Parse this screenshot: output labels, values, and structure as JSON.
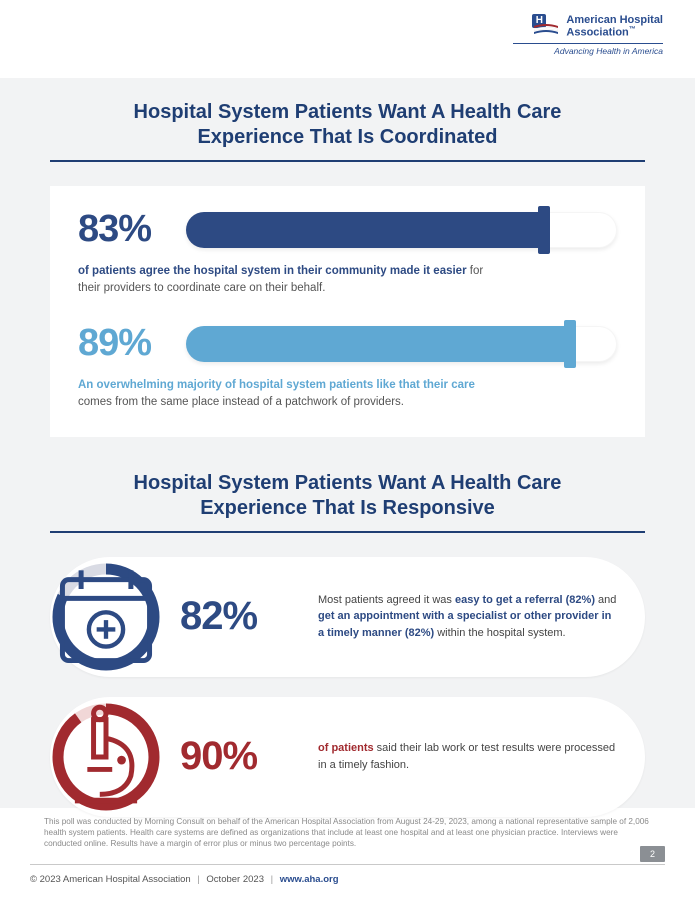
{
  "logo": {
    "name_line1": "American Hospital",
    "name_line2": "Association",
    "tm": "™",
    "tagline": "Advancing Health in America",
    "mark_letter": "H",
    "mark_bg": "#2a4d8f",
    "swoosh_colors": [
      "#a12a2f",
      "#ffffff",
      "#2a4d8f"
    ]
  },
  "section1": {
    "title_line1": "Hospital System Patients Want A Health Care",
    "title_line2": "Experience That Is Coordinated",
    "title_color": "#1f3e73",
    "rule_color": "#1f3e73",
    "panel_bg": "#ffffff",
    "stats": [
      {
        "pct_label": "83%",
        "pct_value": 83,
        "color": "#2d4a83",
        "track_bg": "#ffffff",
        "cap_color": "#2d4a83",
        "lead": "of patients agree the hospital system in their community made it easier",
        "tail": " for their providers to coordinate care on their behalf.",
        "lead_color": "#2d4a83"
      },
      {
        "pct_label": "89%",
        "pct_value": 89,
        "color": "#5fa8d3",
        "track_bg": "#ffffff",
        "cap_color": "#5fa8d3",
        "lead": "An overwhelming majority of hospital system patients like that their care",
        "tail": " comes from the same place instead of a patchwork of providers.",
        "lead_color": "#5fa8d3"
      }
    ]
  },
  "section2": {
    "title_line1": "Hospital System Patients Want A Health Care",
    "title_line2": "Experience That Is Responsive",
    "title_color": "#1f3e73",
    "rule_color": "#1f3e73",
    "stats": [
      {
        "pct_label": "82%",
        "pct_value": 82,
        "ring_color": "#2d4a83",
        "ring_track": "#d9dbe4",
        "icon": "calendar-plus",
        "icon_color": "#2d4a83",
        "lead_segments": [
          {
            "t": "Most patients agreed it was ",
            "b": false,
            "c": "#444"
          },
          {
            "t": "easy to get a referral (82%)",
            "b": true,
            "c": "#2d4a83"
          },
          {
            "t": " and ",
            "b": false,
            "c": "#444"
          },
          {
            "t": "get an appointment with a specialist or other provider in a timely manner (82%)",
            "b": true,
            "c": "#2d4a83"
          },
          {
            "t": " within the hospital system.",
            "b": false,
            "c": "#444"
          }
        ]
      },
      {
        "pct_label": "90%",
        "pct_value": 90,
        "ring_color": "#a12a2f",
        "ring_track": "#f1d7d7",
        "icon": "microscope",
        "icon_color": "#a12a2f",
        "lead_segments": [
          {
            "t": "of patients",
            "b": true,
            "c": "#a12a2f"
          },
          {
            "t": " said their lab work or test results were processed in a timely fashion.",
            "b": false,
            "c": "#444"
          }
        ]
      }
    ]
  },
  "background": {
    "page_bg": "#ffffff",
    "section_bg": "#f2f3f4"
  },
  "disclaimer": "This poll was conducted by Morning Consult on behalf of the American Hospital Association from August 24-29, 2023, among a national representative sample of 2,006 health system patients. Health care systems are defined as organizations that include at least one hospital and at least one physician practice. Interviews were conducted online. Results have a margin of error plus or minus two percentage points.",
  "page_number": "2",
  "footer": {
    "copyright": "© 2023 American Hospital Association",
    "date": "October 2023",
    "url": "www.aha.org",
    "sep": "|"
  }
}
